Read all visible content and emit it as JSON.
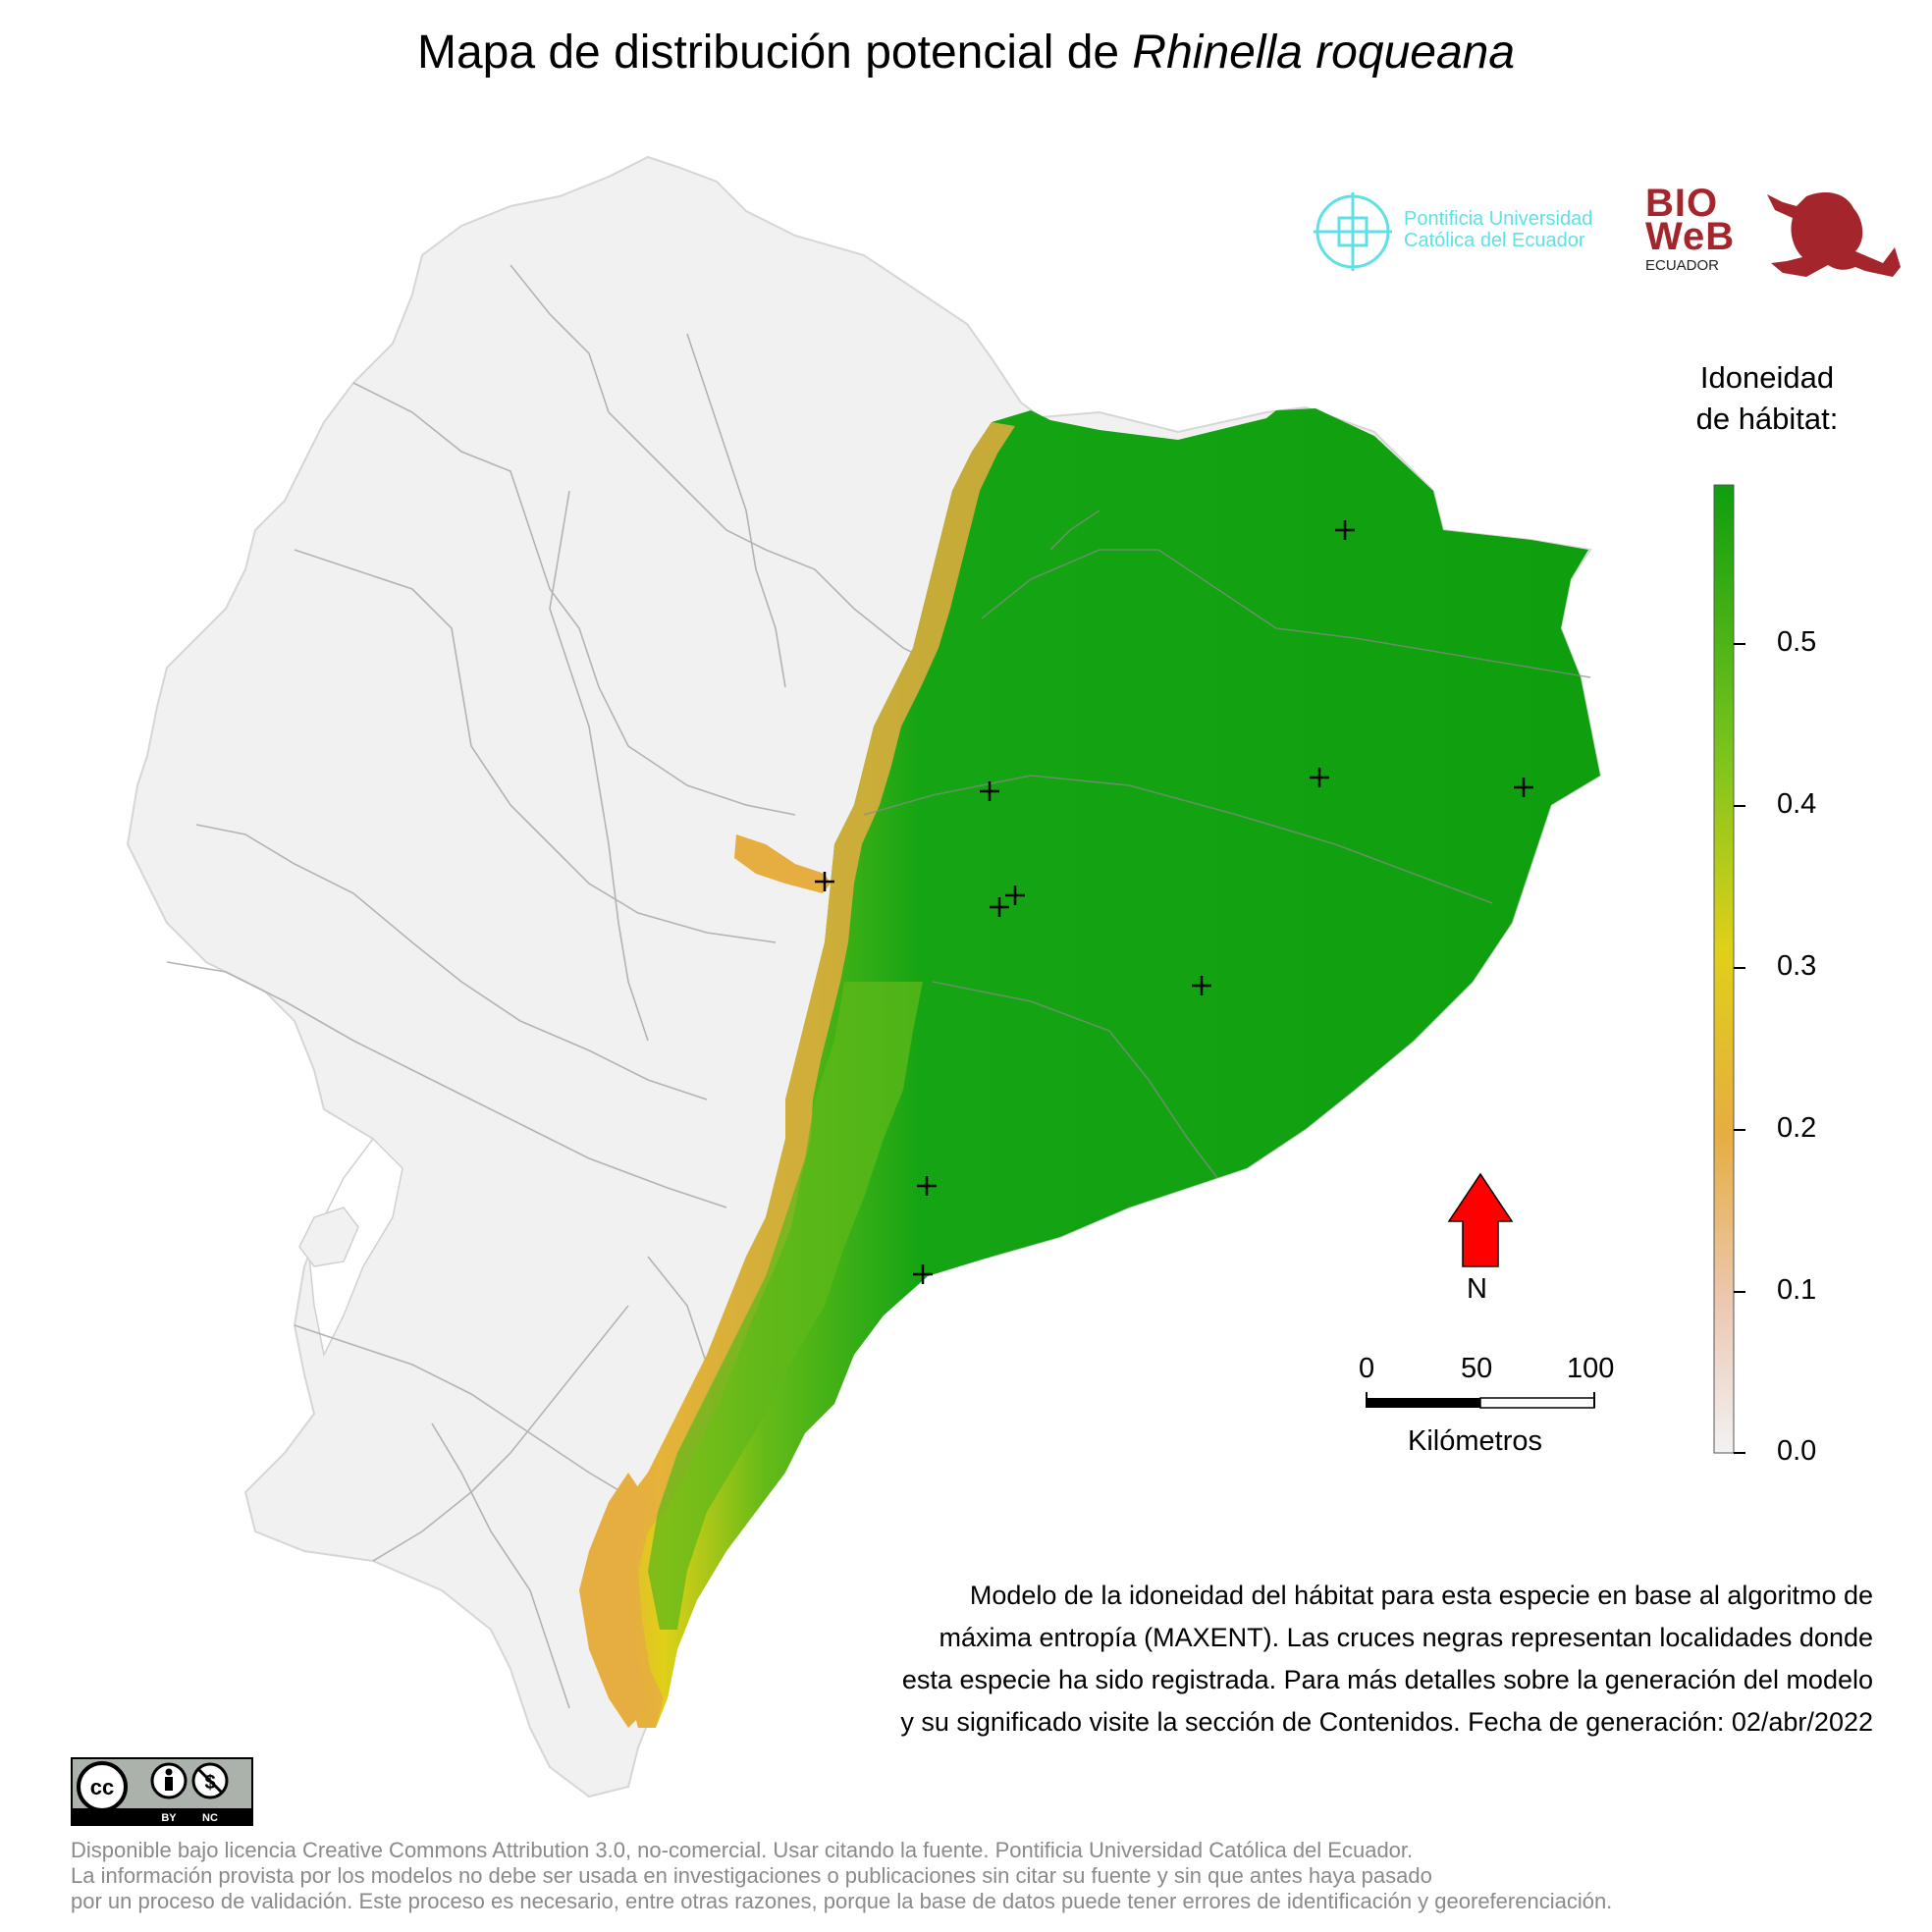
{
  "title": {
    "prefix": "Mapa de distribución potencial de",
    "species": "Rhinella roqueana"
  },
  "logos": {
    "puce_line1": "Pontificia Universidad",
    "puce_line2": "Católica del Ecuador",
    "bioweb_line1": "BIO",
    "bioweb_line2": "WeB",
    "bioweb_sub": "ECUADOR",
    "puce_color": "#5ee0e6",
    "bioweb_color": "#a4262c"
  },
  "legend": {
    "title_line1": "Idoneidad",
    "title_line2": "de hábitat:",
    "ticks": [
      "0.5",
      "0.4",
      "0.3",
      "0.2",
      "0.1",
      "0.0"
    ],
    "tick_values": [
      0.5,
      0.4,
      0.3,
      0.2,
      0.1,
      0.0
    ],
    "range": [
      0.0,
      0.6
    ],
    "colors": [
      "#f2f2f2",
      "#e9b99a",
      "#e6ad40",
      "#e0d018",
      "#7cc41c",
      "#0e9e0e"
    ]
  },
  "north_arrow": {
    "label": "N",
    "color": "#ff0000"
  },
  "scale_bar": {
    "labels": [
      "0",
      "50",
      "100"
    ],
    "unit": "Kilómetros"
  },
  "description": [
    "Modelo de la idoneidad del hábitat para esta especie en base al algoritmo de",
    "máxima entropía (MAXENT). Las cruces negras representan localidades donde",
    "esta especie ha sido registrada. Para más detalles sobre la generación del modelo",
    "y su significado visite la sección de Contenidos. Fecha de generación: 02/abr/2022"
  ],
  "cc_badge": {
    "by": "BY",
    "nc": "NC",
    "cc": "cc"
  },
  "footer": [
    "Disponible bajo licencia Creative Commons Attribution 3.0, no-comercial. Usar citando la fuente. Pontificia Universidad Católica del Ecuador.",
    "La información provista por los modelos no debe ser usada en investigaciones o publicaciones sin citar su fuente y sin que antes haya pasado",
    "por un proceso de validación. Este proceso es necesario, entre otras razones, porque la base de datos puede tener errores de identificación y georeferenciación."
  ]
}
